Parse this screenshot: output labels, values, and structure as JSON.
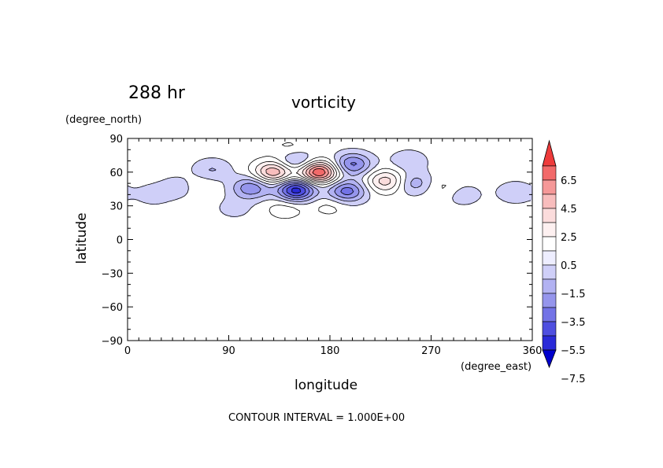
{
  "header": {
    "time_label": "288 hr",
    "title": "vorticity"
  },
  "footer": {
    "contour_note": "CONTOUR INTERVAL = 1.000E+00"
  },
  "chart_data": {
    "type": "contour",
    "variable": "vorticity",
    "time": "288 hr",
    "xlabel": "longitude",
    "xunit": "(degree_east)",
    "ylabel": "latitude",
    "yunit": "(degree_north)",
    "xlim": [
      0,
      360
    ],
    "ylim": [
      -90,
      90
    ],
    "xticks": [
      0,
      90,
      180,
      270,
      360
    ],
    "yticks": [
      90,
      60,
      30,
      0,
      -30,
      -60,
      -90
    ],
    "contour_interval": 1.0,
    "colorbar": {
      "levels": [
        -7.5,
        -6.5,
        -5.5,
        -4.5,
        -3.5,
        -2.5,
        -1.5,
        -0.5,
        0.5,
        1.5,
        2.5,
        3.5,
        4.5,
        5.5,
        6.5,
        7.5
      ],
      "labels": [
        "6.5",
        "4.5",
        "2.5",
        "0.5",
        "-1.5",
        "-3.5",
        "-5.5",
        "-7.5"
      ],
      "colors_top_to_bottom": [
        "#ee3b3b",
        "#f26a6a",
        "#f59898",
        "#f8bdbd",
        "#fbdcdc",
        "#fdf0f0",
        "#ffffff",
        "#eeeeff",
        "#cfcff8",
        "#b2b2f2",
        "#9595ec",
        "#7373e6",
        "#4f4fe0",
        "#2a2ad8",
        "#0000cc"
      ],
      "extend": "both"
    },
    "features": [
      {
        "lon": 170,
        "lat": 60,
        "value": 6.8
      },
      {
        "lon": 130,
        "lat": 60,
        "value": 4.6
      },
      {
        "lon": 230,
        "lat": 52,
        "value": 3.2
      },
      {
        "lon": 150,
        "lat": 44,
        "value": -6.2
      },
      {
        "lon": 195,
        "lat": 43,
        "value": -4.1
      },
      {
        "lon": 200,
        "lat": 67,
        "value": -3.8
      },
      {
        "lon": 110,
        "lat": 46,
        "value": -3.4
      },
      {
        "lon": 150,
        "lat": 70,
        "value": -2.6
      },
      {
        "lon": 255,
        "lat": 50,
        "value": -2.2
      },
      {
        "lon": 75,
        "lat": 62,
        "value": -1.6
      },
      {
        "lon": 48,
        "lat": 47,
        "value": -1.5
      },
      {
        "lon": 345,
        "lat": 42,
        "value": -1.3
      },
      {
        "lon": 298,
        "lat": 40,
        "value": -1.2
      },
      {
        "lon": 23,
        "lat": 40,
        "value": -1.0
      },
      {
        "lon": 95,
        "lat": 28,
        "value": -0.9
      },
      {
        "lon": 250,
        "lat": 70,
        "value": -1.3
      },
      {
        "lon": 180,
        "lat": 30,
        "value": 0.9
      },
      {
        "lon": 140,
        "lat": 28,
        "value": 1.2
      },
      {
        "lon": 60,
        "lat": 48,
        "value": 1.0
      },
      {
        "lon": 280,
        "lat": 46,
        "value": 1.0
      },
      {
        "lon": 145,
        "lat": 80,
        "value": 1.0
      }
    ]
  }
}
